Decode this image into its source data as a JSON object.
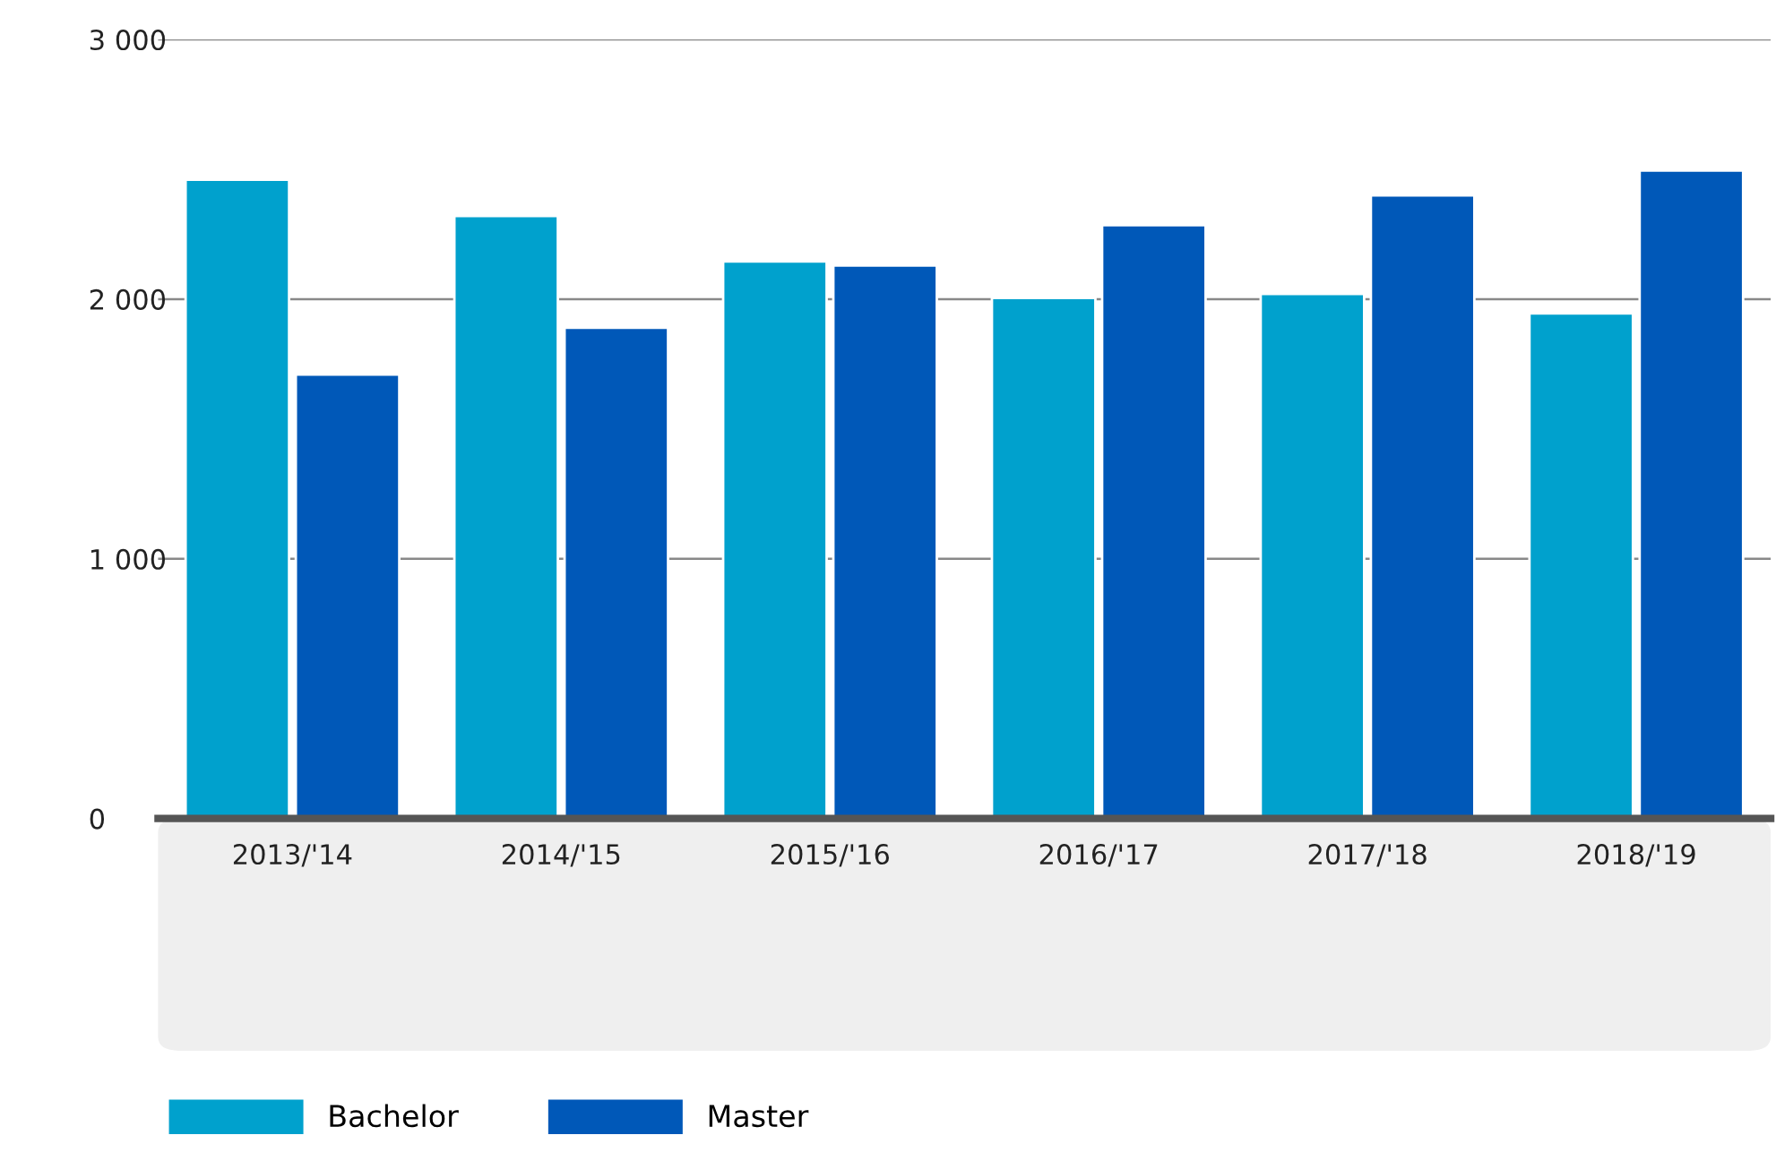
{
  "chart_data": {
    "type": "bar",
    "categories": [
      "2013/'14",
      "2014/'15",
      "2015/'16",
      "2016/'17",
      "2017/'18",
      "2018/'19"
    ],
    "series": [
      {
        "name": "Bachelor",
        "color": "#00a1cd",
        "values": [
          2460,
          2320,
          2145,
          2005,
          2020,
          1945
        ]
      },
      {
        "name": "Master",
        "color": "#0058b8",
        "values": [
          1710,
          1890,
          2130,
          2285,
          2400,
          2495
        ]
      }
    ],
    "ylim": [
      0,
      3000
    ],
    "yticks": [
      {
        "value": 0,
        "label": "0"
      },
      {
        "value": 1000,
        "label": "1 000"
      },
      {
        "value": 2000,
        "label": "2 000"
      },
      {
        "value": 3000,
        "label": "3 000"
      }
    ],
    "grid": "y",
    "legend": "bottom left"
  }
}
